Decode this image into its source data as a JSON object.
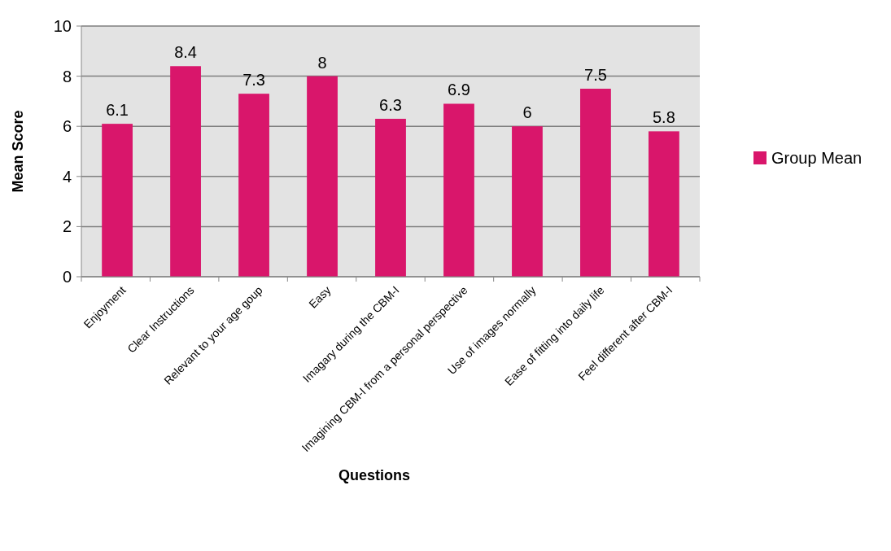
{
  "chart_data": {
    "type": "bar",
    "xlabel": "Questions",
    "ylabel": "Mean Score",
    "categories": [
      "Enjoyment",
      "Clear Instructions",
      "Relevant to your age goup",
      "Easy",
      "Imagary during the CBM-I",
      "Imagining CBM-I from a personal perspective",
      "Use of images normally",
      "Ease of fitting into daily life",
      "Feel different after CBM-I"
    ],
    "series": [
      {
        "name": "Group Mean",
        "color": "#d9166b",
        "values": [
          6.1,
          8.4,
          7.3,
          8,
          6.3,
          6.9,
          6,
          7.5,
          5.8
        ]
      }
    ],
    "ylim": [
      0,
      10
    ],
    "yticks": [
      0,
      2,
      4,
      6,
      8,
      10
    ],
    "grid": "y",
    "legend": "right",
    "data_labels": true
  }
}
